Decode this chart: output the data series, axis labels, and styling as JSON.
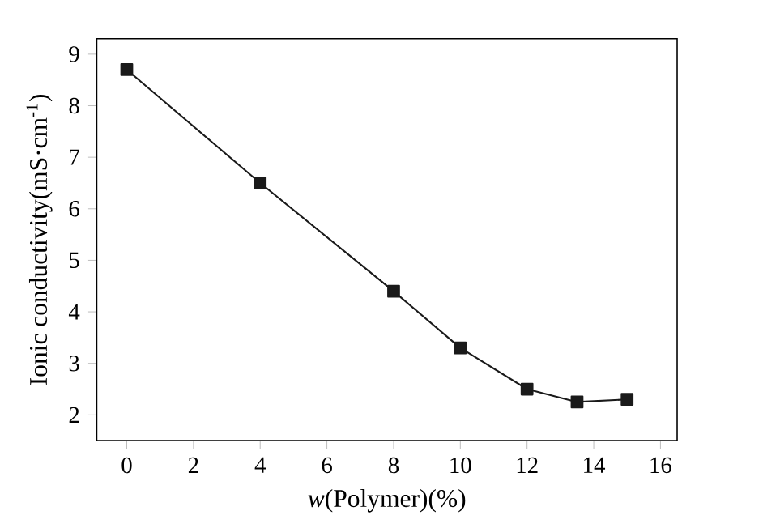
{
  "chart_data": {
    "type": "line",
    "xlabel": "*w*(Polymer)(%)",
    "ylabel": "Ionic conductivity(mS·cm$^{-1}$)",
    "x": [
      0,
      4,
      8,
      10,
      12,
      13.5,
      15
    ],
    "series": [
      {
        "color": "#1a1a1a",
        "values": [
          8.7,
          6.5,
          4.4,
          3.3,
          2.5,
          2.25,
          2.3
        ]
      }
    ],
    "xlim": [
      -0.9,
      16.5
    ],
    "ylim": [
      1.5,
      9.3
    ],
    "xticks": [
      0,
      2,
      4,
      6,
      8,
      10,
      12,
      14,
      16
    ],
    "yticks": [
      2,
      3,
      4,
      5,
      6,
      7,
      8,
      9
    ],
    "marker": "square",
    "line_style": "solid",
    "grid": false
  }
}
